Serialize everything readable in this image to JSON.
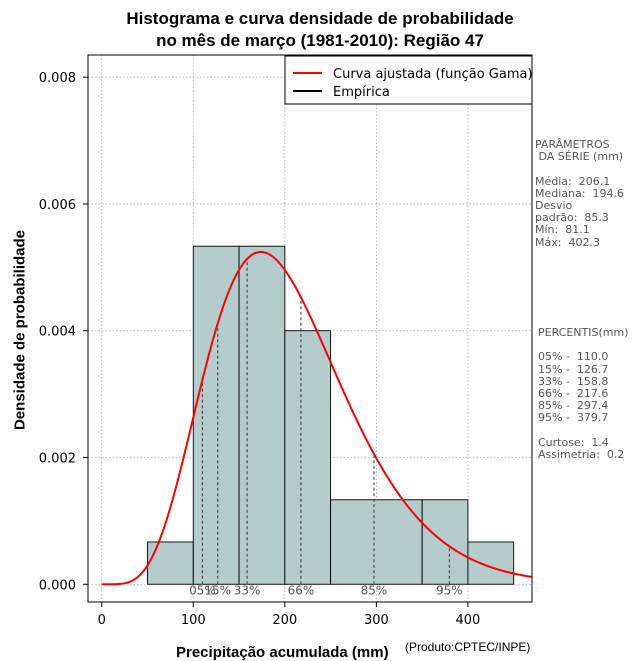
{
  "chart_data": {
    "type": "bar",
    "title_line1": "Histograma e curva densidade de probabilidade",
    "title_line2": "no mês de março (1981-2010): Região 47",
    "xlabel": "Precipitação acumulada (mm)",
    "ylabel": "Densidade de probabilidade",
    "product_note": "(Produto:CPTEC/INPE)",
    "xlim": [
      -15,
      470
    ],
    "ylim": [
      -0.00028,
      0.00835
    ],
    "x_ticks": [
      0,
      100,
      200,
      300,
      400
    ],
    "x_tick_labels": [
      "0",
      "100",
      "200",
      "300",
      "400"
    ],
    "y_ticks": [
      0,
      0.002,
      0.004,
      0.006,
      0.008
    ],
    "y_tick_labels": [
      "0.000",
      "0.002",
      "0.004",
      "0.006",
      "0.008"
    ],
    "grid": true,
    "bin_edges": [
      50,
      100,
      150,
      200,
      250,
      350,
      400,
      450
    ],
    "densities": [
      0.000667,
      0.005333,
      0.005333,
      0.004,
      0.001333,
      0.001333,
      0.000667
    ],
    "bar_color": "#b4cccc",
    "gamma_fit": {
      "shape": 6.38,
      "scale": 32.3,
      "color": "#ff0000"
    },
    "legend": {
      "position": "top-right",
      "entries": [
        {
          "label": "Curva ajustada (função Gama)",
          "color": "#ff0000"
        },
        {
          "label": "Empírica",
          "color": "#000000"
        }
      ]
    },
    "percentile_markers": [
      {
        "label": "05%",
        "value": 110.0
      },
      {
        "label": "15%",
        "value": 126.7
      },
      {
        "label": "33%",
        "value": 158.8
      },
      {
        "label": "66%",
        "value": 217.6
      },
      {
        "label": "85%",
        "value": 297.4
      },
      {
        "label": "95%",
        "value": 379.7
      }
    ]
  },
  "side_panel": {
    "params_text": "PARÂMETROS\n DA SÉRIE (mm)\n\nMédia:  206.1\nMediana:  194.6\nDesvio\npadrão:  85.3\nMín:  81.1\nMáx:  402.3",
    "percentiles_text": "PERCENTIS(mm)\n\n05% -  110.0\n15% -  126.7\n33% -  158.8\n66% -  217.6\n85% -  297.4\n95% -  379.7\n\nCurtose:  1.4\nAssimetria:  0.2"
  }
}
